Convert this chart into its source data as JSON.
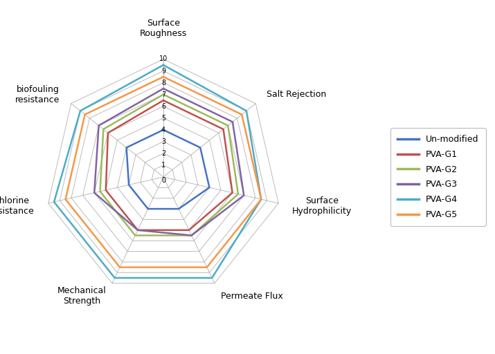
{
  "categories": [
    "Surface\nRoughness",
    "Salt Rejection",
    "Surface\nHydrophilicity",
    "Permeate Flux",
    "Mechanical\nStrength",
    "Chlorine\nResistance",
    "biofouling\nresistance"
  ],
  "series": [
    {
      "name": "Un-modified",
      "color": "#4472C4",
      "values": [
        4,
        4,
        4,
        3,
        3,
        3,
        4
      ]
    },
    {
      "name": "PVA-G1",
      "color": "#C0504D",
      "values": [
        6.5,
        6.5,
        6.0,
        5.0,
        5.0,
        5.0,
        6.0
      ]
    },
    {
      "name": "PVA-G2",
      "color": "#9BBB59",
      "values": [
        7.0,
        7.0,
        6.5,
        5.5,
        5.5,
        5.5,
        6.5
      ]
    },
    {
      "name": "PVA-G3",
      "color": "#8064A2",
      "values": [
        7.5,
        7.5,
        7.0,
        5.5,
        5.0,
        6.0,
        7.0
      ]
    },
    {
      "name": "PVA-G4",
      "color": "#4BACC6",
      "values": [
        9.5,
        9.0,
        8.5,
        9.5,
        9.5,
        9.5,
        9.0
      ]
    },
    {
      "name": "PVA-G5",
      "color": "#F79646",
      "values": [
        8.5,
        8.5,
        8.5,
        8.5,
        8.5,
        8.5,
        8.5
      ]
    }
  ],
  "num_levels": 10,
  "max_value": 10,
  "figsize": [
    7.15,
    5.12
  ],
  "dpi": 100,
  "background_color": "#ffffff",
  "grid_color": "#b0b0b0",
  "line_width": 1.8,
  "label_fontsize": 9,
  "tick_fontsize": 7,
  "legend_fontsize": 9
}
